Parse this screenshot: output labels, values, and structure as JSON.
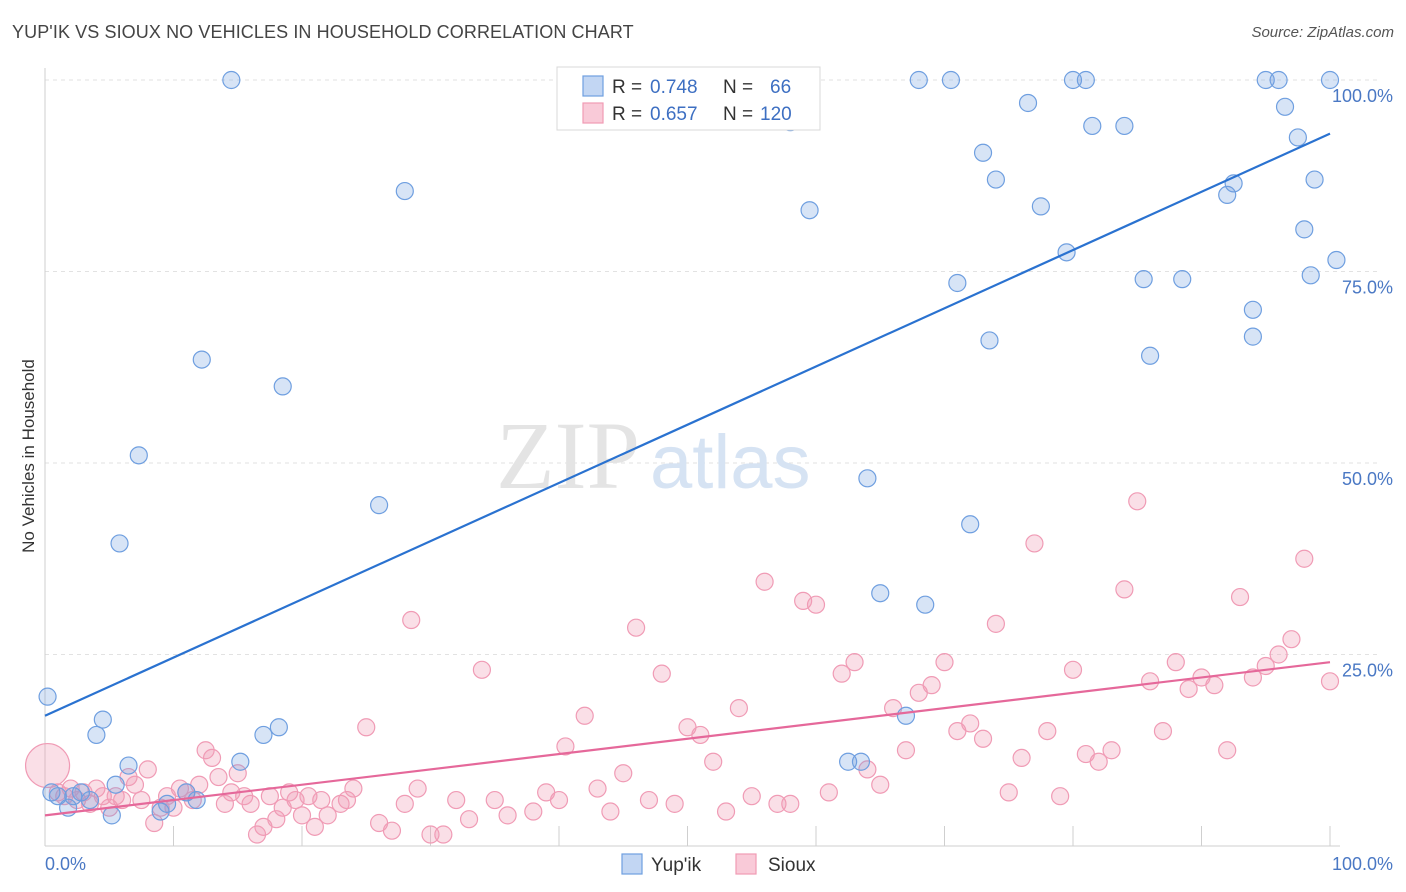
{
  "header": {
    "title": "YUP'IK VS SIOUX NO VEHICLES IN HOUSEHOLD CORRELATION CHART",
    "source": "Source: ZipAtlas.com"
  },
  "watermark": {
    "zip": "ZIP",
    "atlas": "atlas"
  },
  "legend_top": {
    "rows": [
      {
        "r_label": "R =",
        "r_value": "0.748",
        "n_label": "N =",
        "n_value": "66"
      },
      {
        "r_label": "R =",
        "r_value": "0.657",
        "n_label": "N =",
        "n_value": "120"
      }
    ]
  },
  "chart_data": {
    "type": "scatter",
    "title": "YUP'IK VS SIOUX NO VEHICLES IN HOUSEHOLD CORRELATION CHART",
    "xlabel": "",
    "ylabel": "No Vehicles in Household",
    "xlim": [
      0,
      100
    ],
    "ylim": [
      0,
      100
    ],
    "x_tick_labels": [
      "0.0%",
      "100.0%"
    ],
    "y_tick_labels": [
      "25.0%",
      "50.0%",
      "75.0%",
      "100.0%"
    ],
    "y_ticks": [
      25,
      50,
      75,
      100
    ],
    "grid": true,
    "legend_position": "top-center",
    "colors": {
      "yupik": "#6f9fe0",
      "sioux": "#f09bb5",
      "yupik_line": "#2a72d0",
      "sioux_line": "#e5689a"
    },
    "series": [
      {
        "name": "Yup'ik",
        "r": 0.748,
        "n": 66,
        "trend": {
          "x": [
            0,
            100
          ],
          "y": [
            17.0,
            93.0
          ]
        },
        "points": [
          [
            0.2,
            19.5
          ],
          [
            0.5,
            7.0
          ],
          [
            1.0,
            6.5
          ],
          [
            1.8,
            5.0
          ],
          [
            2.2,
            6.5
          ],
          [
            2.8,
            7.0
          ],
          [
            3.5,
            6.0
          ],
          [
            4.0,
            14.5
          ],
          [
            4.5,
            16.5
          ],
          [
            5.2,
            4.0
          ],
          [
            5.5,
            8.0
          ],
          [
            5.8,
            39.5
          ],
          [
            6.5,
            10.5
          ],
          [
            7.3,
            51.0
          ],
          [
            9.0,
            4.5
          ],
          [
            9.5,
            5.5
          ],
          [
            11.0,
            7.0
          ],
          [
            11.8,
            6.0
          ],
          [
            12.2,
            63.5
          ],
          [
            14.5,
            100.0
          ],
          [
            15.2,
            11.0
          ],
          [
            17.0,
            14.5
          ],
          [
            18.2,
            15.5
          ],
          [
            18.5,
            60.0
          ],
          [
            26.0,
            44.5
          ],
          [
            28.0,
            85.5
          ],
          [
            41.5,
            100.0
          ],
          [
            43.0,
            100.0
          ],
          [
            58.0,
            94.5
          ],
          [
            59.5,
            83.0
          ],
          [
            62.5,
            11.0
          ],
          [
            63.5,
            11.0
          ],
          [
            64.0,
            48.0
          ],
          [
            65.0,
            33.0
          ],
          [
            67.0,
            17.0
          ],
          [
            68.0,
            100.0
          ],
          [
            68.5,
            31.5
          ],
          [
            70.5,
            100.0
          ],
          [
            71.0,
            73.5
          ],
          [
            72.0,
            42.0
          ],
          [
            73.0,
            90.5
          ],
          [
            73.5,
            66.0
          ],
          [
            74.0,
            87.0
          ],
          [
            76.5,
            97.0
          ],
          [
            77.5,
            83.5
          ],
          [
            79.5,
            77.5
          ],
          [
            80.0,
            100.0
          ],
          [
            81.0,
            100.0
          ],
          [
            81.5,
            94.0
          ],
          [
            84.0,
            94.0
          ],
          [
            85.5,
            74.0
          ],
          [
            86.0,
            64.0
          ],
          [
            88.5,
            74.0
          ],
          [
            92.0,
            85.0
          ],
          [
            92.5,
            86.5
          ],
          [
            94.0,
            70.0
          ],
          [
            94.0,
            66.5
          ],
          [
            95.0,
            100.0
          ],
          [
            96.0,
            100.0
          ],
          [
            96.5,
            96.5
          ],
          [
            97.5,
            92.5
          ],
          [
            98.0,
            80.5
          ],
          [
            98.5,
            74.5
          ],
          [
            98.8,
            87.0
          ],
          [
            100.0,
            100.0
          ],
          [
            100.5,
            76.5
          ]
        ]
      },
      {
        "name": "Sioux",
        "r": 0.657,
        "n": 120,
        "trend": {
          "x": [
            0,
            100
          ],
          "y": [
            4.0,
            24.0
          ]
        },
        "points": [
          [
            0.2,
            10.5
          ],
          [
            1.0,
            7.0
          ],
          [
            1.5,
            6.5
          ],
          [
            2.0,
            7.5
          ],
          [
            2.5,
            6.0
          ],
          [
            3.0,
            7.0
          ],
          [
            3.5,
            5.5
          ],
          [
            4.0,
            7.5
          ],
          [
            4.5,
            6.5
          ],
          [
            5.0,
            5.0
          ],
          [
            5.5,
            6.5
          ],
          [
            6.0,
            6.0
          ],
          [
            6.5,
            9.0
          ],
          [
            7.0,
            8.0
          ],
          [
            7.5,
            6.0
          ],
          [
            8.0,
            10.0
          ],
          [
            8.5,
            3.0
          ],
          [
            9.0,
            5.0
          ],
          [
            9.5,
            6.5
          ],
          [
            10.0,
            5.0
          ],
          [
            10.5,
            7.5
          ],
          [
            11.0,
            7.0
          ],
          [
            11.5,
            6.0
          ],
          [
            12.0,
            8.0
          ],
          [
            12.5,
            12.5
          ],
          [
            13.0,
            11.5
          ],
          [
            13.5,
            9.0
          ],
          [
            14.0,
            5.5
          ],
          [
            14.5,
            7.0
          ],
          [
            15.0,
            9.5
          ],
          [
            15.5,
            6.5
          ],
          [
            16.0,
            5.5
          ],
          [
            16.5,
            1.5
          ],
          [
            17.0,
            2.5
          ],
          [
            17.5,
            6.5
          ],
          [
            18.0,
            3.5
          ],
          [
            18.5,
            5.0
          ],
          [
            19.0,
            7.0
          ],
          [
            19.5,
            6.0
          ],
          [
            20.0,
            4.0
          ],
          [
            20.5,
            6.5
          ],
          [
            21.0,
            2.5
          ],
          [
            21.5,
            6.0
          ],
          [
            22.0,
            4.0
          ],
          [
            23.0,
            5.5
          ],
          [
            23.5,
            6.0
          ],
          [
            24.0,
            7.5
          ],
          [
            25.0,
            15.5
          ],
          [
            26.0,
            3.0
          ],
          [
            27.0,
            2.0
          ],
          [
            28.0,
            5.5
          ],
          [
            28.5,
            29.5
          ],
          [
            29.0,
            7.5
          ],
          [
            30.0,
            1.5
          ],
          [
            31.0,
            1.5
          ],
          [
            32.0,
            6.0
          ],
          [
            33.0,
            3.5
          ],
          [
            34.0,
            23.0
          ],
          [
            35.0,
            6.0
          ],
          [
            36.0,
            4.0
          ],
          [
            38.0,
            4.5
          ],
          [
            39.0,
            7.0
          ],
          [
            40.0,
            6.0
          ],
          [
            40.5,
            13.0
          ],
          [
            42.0,
            17.0
          ],
          [
            43.0,
            7.5
          ],
          [
            44.0,
            4.5
          ],
          [
            45.0,
            9.5
          ],
          [
            46.0,
            28.5
          ],
          [
            47.0,
            6.0
          ],
          [
            48.0,
            22.5
          ],
          [
            49.0,
            5.5
          ],
          [
            50.0,
            15.5
          ],
          [
            51.0,
            14.5
          ],
          [
            52.0,
            11.0
          ],
          [
            53.0,
            4.5
          ],
          [
            54.0,
            18.0
          ],
          [
            55.0,
            6.5
          ],
          [
            56.0,
            34.5
          ],
          [
            57.0,
            5.5
          ],
          [
            58.0,
            5.5
          ],
          [
            59.0,
            32.0
          ],
          [
            60.0,
            31.5
          ],
          [
            61.0,
            7.0
          ],
          [
            62.0,
            22.5
          ],
          [
            63.0,
            24.0
          ],
          [
            64.0,
            10.0
          ],
          [
            65.0,
            8.0
          ],
          [
            66.0,
            18.0
          ],
          [
            67.0,
            12.5
          ],
          [
            68.0,
            20.0
          ],
          [
            69.0,
            21.0
          ],
          [
            70.0,
            24.0
          ],
          [
            71.0,
            15.0
          ],
          [
            72.0,
            16.0
          ],
          [
            73.0,
            14.0
          ],
          [
            74.0,
            29.0
          ],
          [
            75.0,
            7.0
          ],
          [
            76.0,
            11.5
          ],
          [
            77.0,
            39.5
          ],
          [
            78.0,
            15.0
          ],
          [
            79.0,
            6.5
          ],
          [
            80.0,
            23.0
          ],
          [
            81.0,
            12.0
          ],
          [
            82.0,
            11.0
          ],
          [
            83.0,
            12.5
          ],
          [
            84.0,
            33.5
          ],
          [
            85.0,
            45.0
          ],
          [
            86.0,
            21.5
          ],
          [
            87.0,
            15.0
          ],
          [
            88.0,
            24.0
          ],
          [
            89.0,
            20.5
          ],
          [
            90.0,
            22.0
          ],
          [
            91.0,
            21.0
          ],
          [
            92.0,
            12.5
          ],
          [
            93.0,
            32.5
          ],
          [
            94.0,
            22.0
          ],
          [
            95.0,
            23.5
          ],
          [
            96.0,
            25.0
          ],
          [
            97.0,
            27.0
          ],
          [
            98.0,
            37.5
          ],
          [
            100.0,
            21.5
          ]
        ]
      }
    ]
  }
}
